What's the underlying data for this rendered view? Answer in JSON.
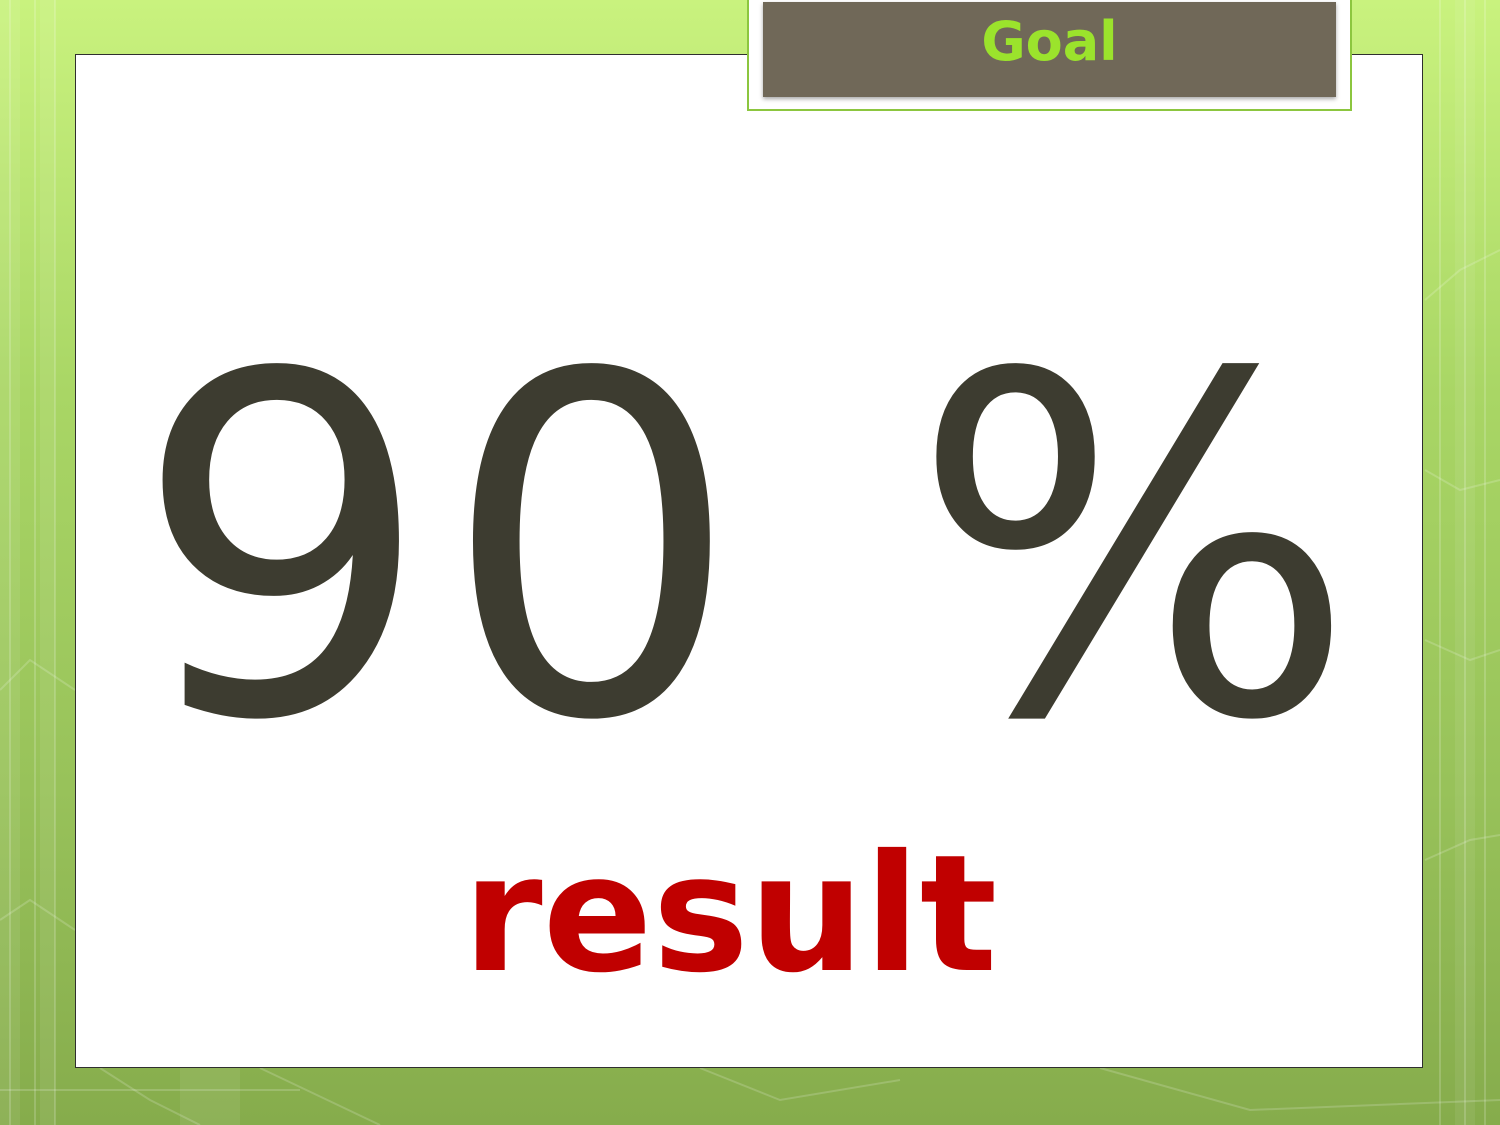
{
  "slide": {
    "title": "Goal",
    "value": "90 %",
    "label": "result"
  },
  "colors": {
    "title_text": "#9be32c",
    "title_box": "#706858",
    "value_text": "#3d3c30",
    "label_text": "#c00000",
    "background": "#a9d665"
  }
}
